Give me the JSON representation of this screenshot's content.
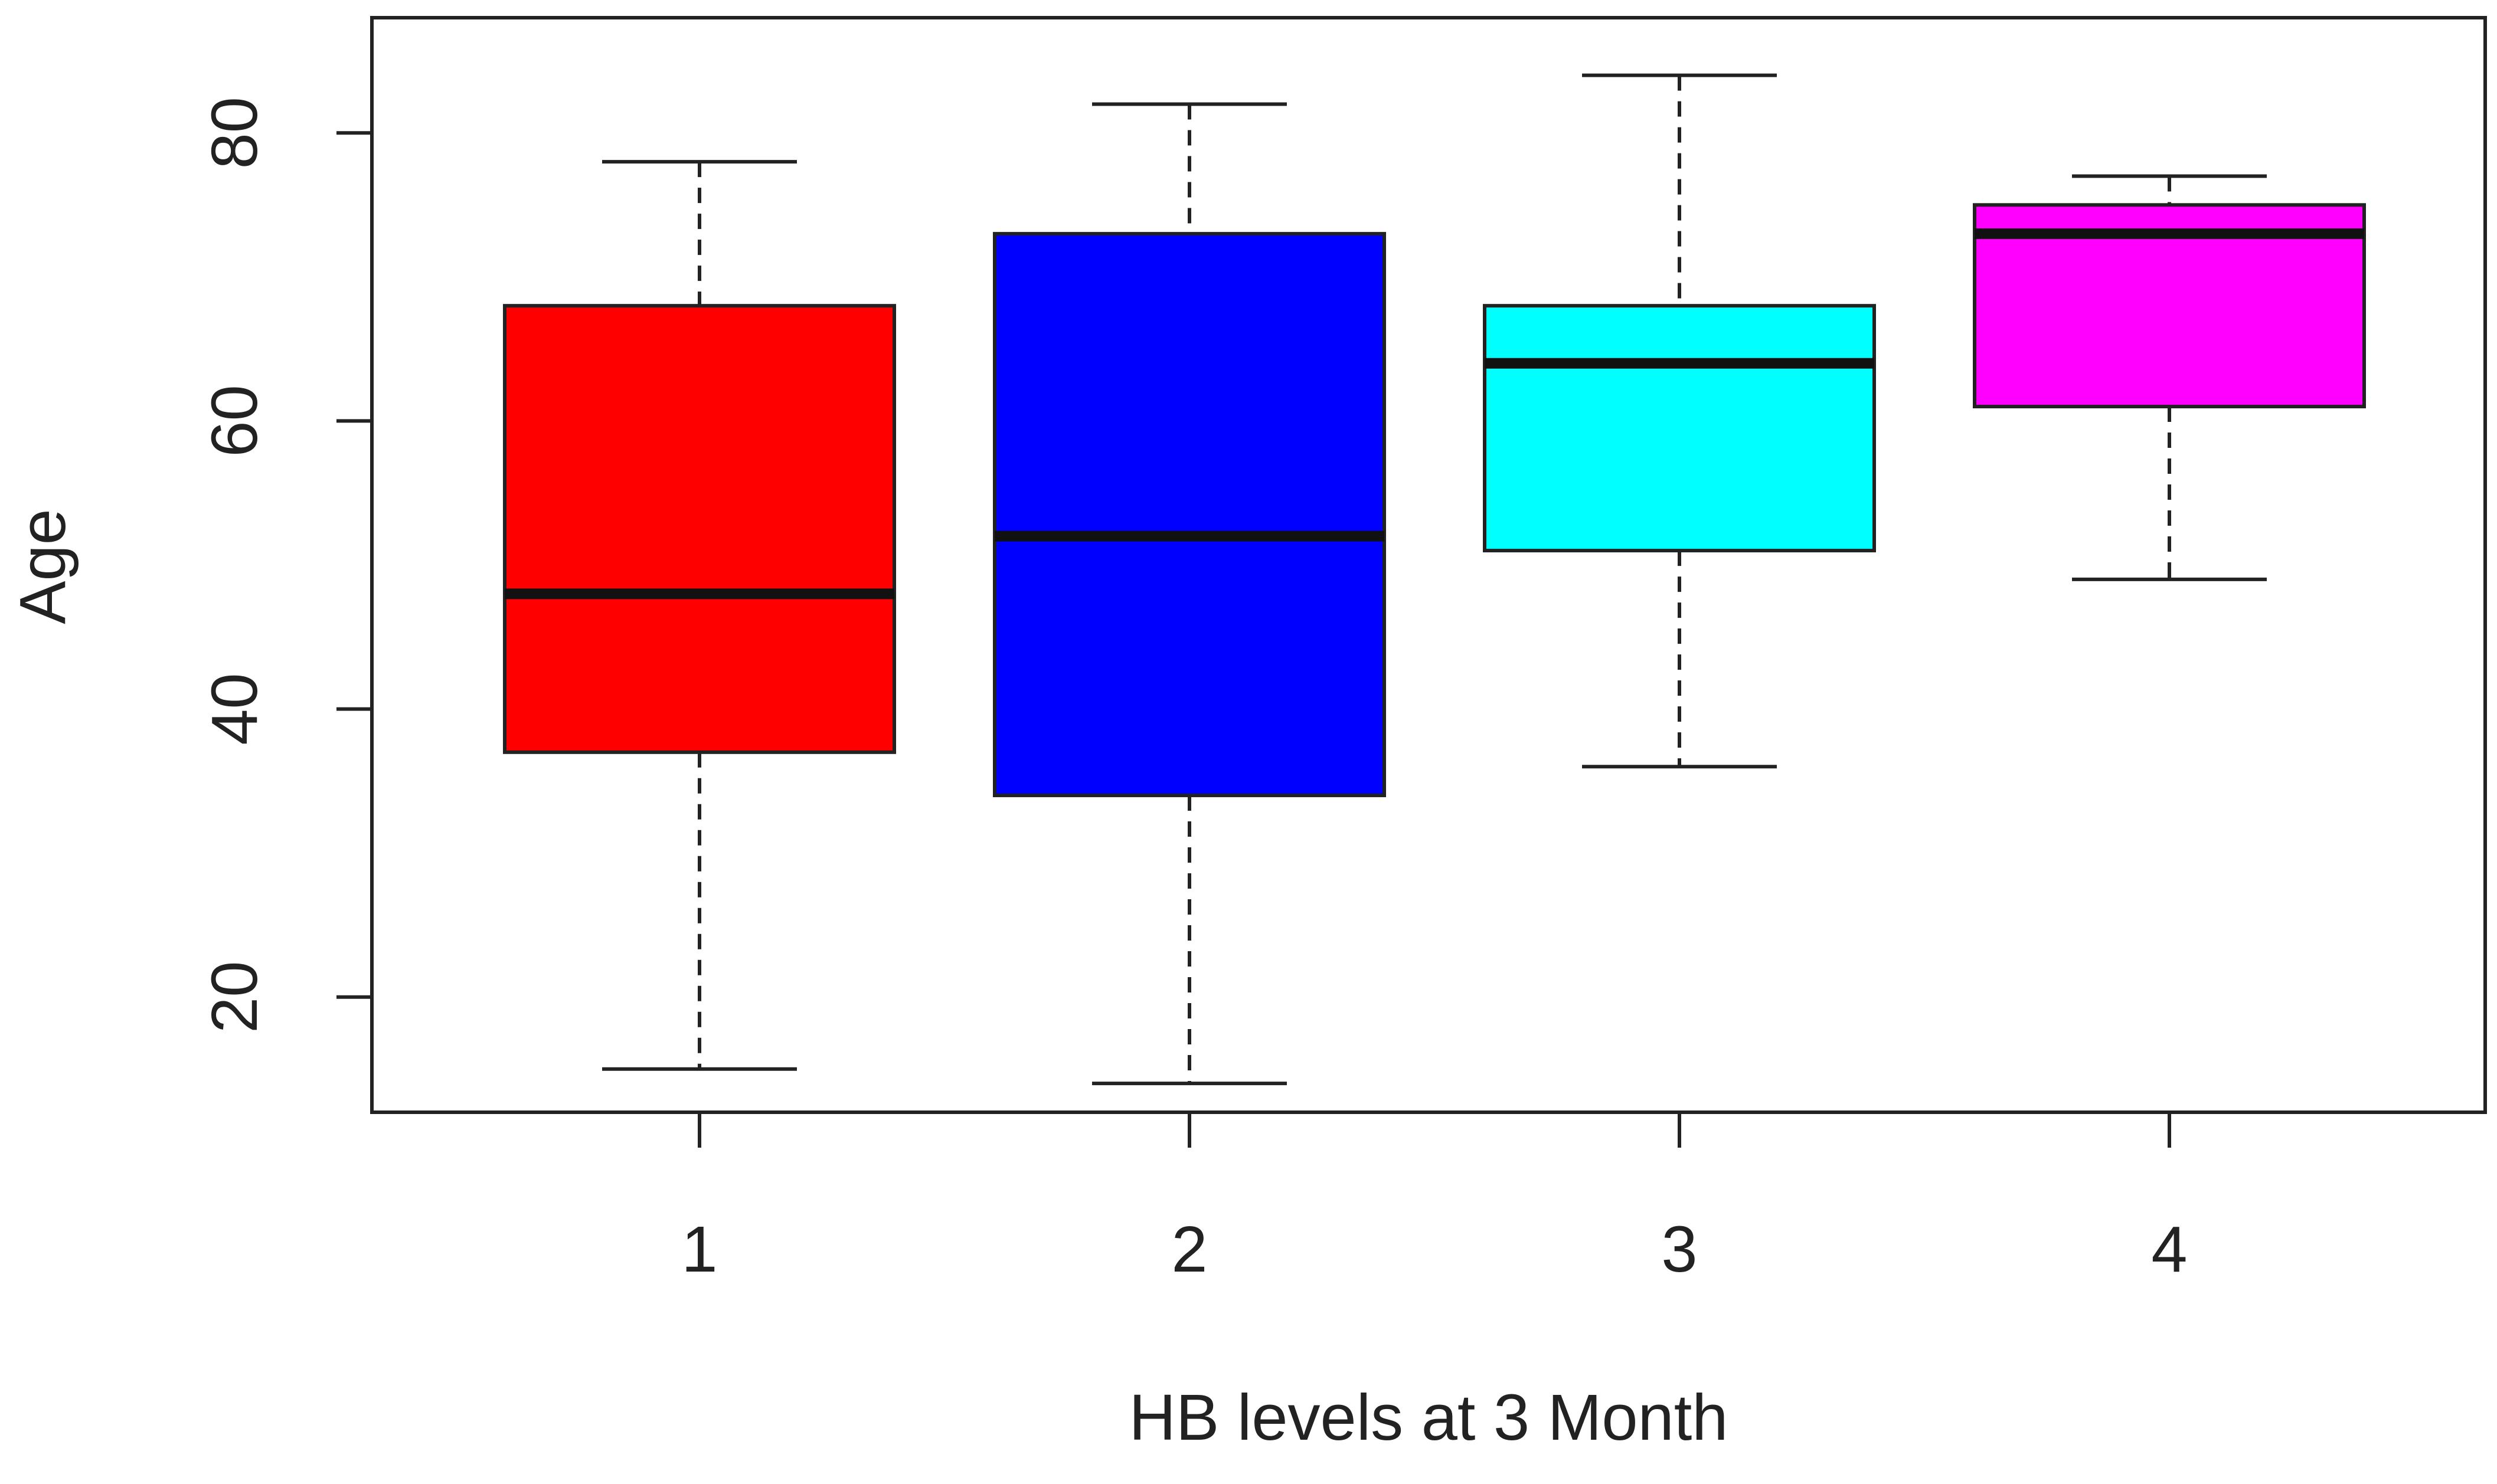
{
  "chart_data": {
    "type": "boxplot",
    "title": "",
    "xlabel": "HB levels at 3 Month",
    "ylabel": "Age",
    "categories": [
      "1",
      "2",
      "3",
      "4"
    ],
    "ylim": [
      12,
      88
    ],
    "yticks": [
      20,
      40,
      60,
      80
    ],
    "grid": false,
    "boxes": [
      {
        "category": "1",
        "whisker_low": 15,
        "q1": 37,
        "median": 48,
        "q3": 68,
        "whisker_high": 78,
        "color": "#ff0000"
      },
      {
        "category": "2",
        "whisker_low": 14,
        "q1": 34,
        "median": 52,
        "q3": 73,
        "whisker_high": 82,
        "color": "#0000ff"
      },
      {
        "category": "3",
        "whisker_low": 36,
        "q1": 51,
        "median": 64,
        "q3": 68,
        "whisker_high": 84,
        "color": "#00ffff"
      },
      {
        "category": "4",
        "whisker_low": 49,
        "q1": 61,
        "median": 73,
        "q3": 75,
        "whisker_high": 77,
        "color": "#ff00ff"
      }
    ]
  }
}
